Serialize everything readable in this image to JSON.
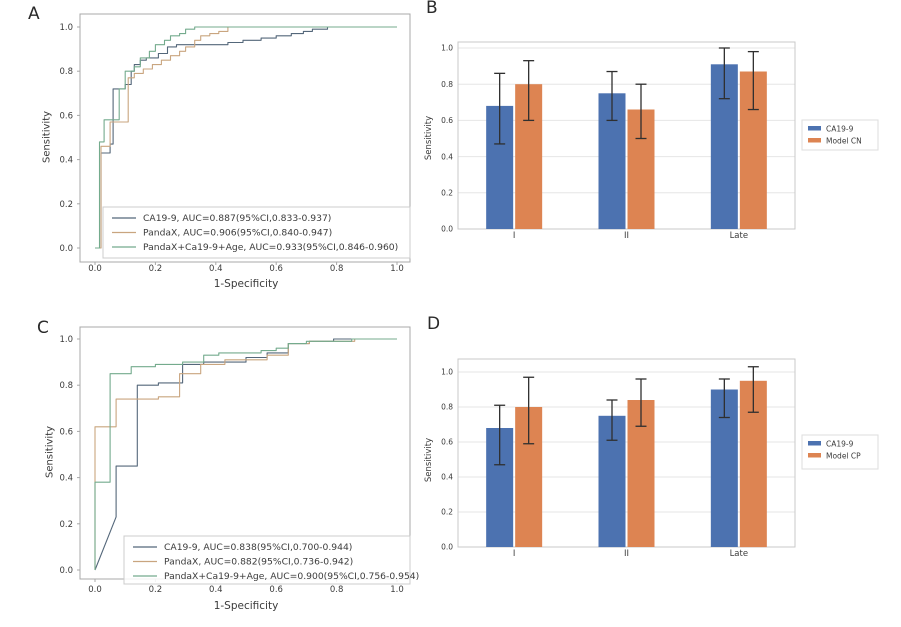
{
  "style": {
    "background": "#ffffff",
    "spine_roc": "#a8a8a8",
    "spine_bar": "#c9c9c9",
    "grid": "#e6e6e6",
    "error_bar": "#2f2f2f",
    "text": "#3b3b3b",
    "legend_border": "#cccccc"
  },
  "chart_data": [
    {
      "id": "A",
      "label": "A",
      "type": "line",
      "subtype": "roc-step",
      "xlabel": "1-Specificity",
      "ylabel": "Sensitivity",
      "xlim": [
        0.0,
        1.0
      ],
      "ylim": [
        0.0,
        1.0
      ],
      "xticks": [
        "0.0",
        "0.2",
        "0.4",
        "0.6",
        "0.8",
        "1.0"
      ],
      "yticks": [
        "0.0",
        "0.2",
        "0.4",
        "0.6",
        "0.8",
        "1.0"
      ],
      "grid": false,
      "legend_position": "lower right",
      "series": [
        {
          "name": "CA19-9",
          "auc": 0.887,
          "ci": "0.833-0.937",
          "legend": "CA19-9, AUC=0.887(95%CI,0.833-0.937)",
          "color": "#54677a",
          "points": [
            [
              0,
              0
            ],
            [
              0.02,
              0
            ],
            [
              0.02,
              0.43
            ],
            [
              0.05,
              0.43
            ],
            [
              0.05,
              0.47
            ],
            [
              0.06,
              0.47
            ],
            [
              0.06,
              0.72
            ],
            [
              0.1,
              0.72
            ],
            [
              0.1,
              0.74
            ],
            [
              0.12,
              0.74
            ],
            [
              0.12,
              0.8
            ],
            [
              0.13,
              0.8
            ],
            [
              0.13,
              0.83
            ],
            [
              0.15,
              0.83
            ],
            [
              0.15,
              0.85
            ],
            [
              0.17,
              0.85
            ],
            [
              0.17,
              0.86
            ],
            [
              0.21,
              0.86
            ],
            [
              0.21,
              0.88
            ],
            [
              0.24,
              0.88
            ],
            [
              0.24,
              0.91
            ],
            [
              0.27,
              0.91
            ],
            [
              0.27,
              0.92
            ],
            [
              0.44,
              0.92
            ],
            [
              0.44,
              0.93
            ],
            [
              0.49,
              0.93
            ],
            [
              0.49,
              0.94
            ],
            [
              0.55,
              0.94
            ],
            [
              0.55,
              0.95
            ],
            [
              0.6,
              0.95
            ],
            [
              0.6,
              0.96
            ],
            [
              0.65,
              0.96
            ],
            [
              0.65,
              0.97
            ],
            [
              0.69,
              0.97
            ],
            [
              0.69,
              0.98
            ],
            [
              0.72,
              0.98
            ],
            [
              0.72,
              0.99
            ],
            [
              0.77,
              0.99
            ],
            [
              0.77,
              1
            ],
            [
              1,
              1
            ]
          ]
        },
        {
          "name": "PandaX",
          "auc": 0.906,
          "ci": "0.840-0.947",
          "legend": "PandaX, AUC=0.906(95%CI,0.840-0.947)",
          "color": "#c9a57f",
          "points": [
            [
              0,
              0
            ],
            [
              0.02,
              0
            ],
            [
              0.02,
              0.46
            ],
            [
              0.05,
              0.46
            ],
            [
              0.05,
              0.57
            ],
            [
              0.11,
              0.57
            ],
            [
              0.11,
              0.77
            ],
            [
              0.13,
              0.77
            ],
            [
              0.13,
              0.79
            ],
            [
              0.16,
              0.79
            ],
            [
              0.16,
              0.81
            ],
            [
              0.19,
              0.81
            ],
            [
              0.19,
              0.83
            ],
            [
              0.22,
              0.83
            ],
            [
              0.22,
              0.85
            ],
            [
              0.25,
              0.85
            ],
            [
              0.25,
              0.87
            ],
            [
              0.28,
              0.87
            ],
            [
              0.28,
              0.89
            ],
            [
              0.3,
              0.89
            ],
            [
              0.3,
              0.91
            ],
            [
              0.33,
              0.91
            ],
            [
              0.33,
              0.94
            ],
            [
              0.35,
              0.94
            ],
            [
              0.35,
              0.96
            ],
            [
              0.38,
              0.96
            ],
            [
              0.38,
              0.97
            ],
            [
              0.41,
              0.97
            ],
            [
              0.41,
              0.98
            ],
            [
              0.44,
              0.98
            ],
            [
              0.44,
              1
            ],
            [
              1,
              1
            ]
          ]
        },
        {
          "name": "PandaX+Ca19-9+Age",
          "auc": 0.933,
          "ci": "0.846-0.960",
          "legend": "PandaX+Ca19-9+Age, AUC=0.933(95%CI,0.846-0.960)",
          "color": "#74ab8d",
          "points": [
            [
              0,
              0
            ],
            [
              0.015,
              0
            ],
            [
              0.015,
              0.48
            ],
            [
              0.03,
              0.48
            ],
            [
              0.03,
              0.58
            ],
            [
              0.08,
              0.58
            ],
            [
              0.08,
              0.72
            ],
            [
              0.1,
              0.72
            ],
            [
              0.1,
              0.8
            ],
            [
              0.13,
              0.8
            ],
            [
              0.13,
              0.82
            ],
            [
              0.15,
              0.82
            ],
            [
              0.15,
              0.86
            ],
            [
              0.18,
              0.86
            ],
            [
              0.18,
              0.89
            ],
            [
              0.2,
              0.89
            ],
            [
              0.2,
              0.92
            ],
            [
              0.23,
              0.92
            ],
            [
              0.23,
              0.94
            ],
            [
              0.25,
              0.94
            ],
            [
              0.25,
              0.96
            ],
            [
              0.28,
              0.96
            ],
            [
              0.28,
              0.97
            ],
            [
              0.3,
              0.97
            ],
            [
              0.3,
              0.99
            ],
            [
              0.33,
              0.99
            ],
            [
              0.33,
              1
            ],
            [
              1,
              1
            ]
          ]
        }
      ]
    },
    {
      "id": "B",
      "label": "B",
      "type": "bar",
      "ylabel": "Sensitivity",
      "categories": [
        "I",
        "II",
        "Late"
      ],
      "yticks": [
        "0.0",
        "0.2",
        "0.4",
        "0.6",
        "0.8",
        "1.0"
      ],
      "ylim": [
        0.0,
        1.03
      ],
      "grid": true,
      "legend_position": "center right",
      "series": [
        {
          "name": "CA19-9",
          "color": "#4c72b0",
          "values": [
            0.68,
            0.75,
            0.91
          ],
          "err_low": [
            0.47,
            0.6,
            0.72
          ],
          "err_high": [
            0.86,
            0.87,
            1.0
          ]
        },
        {
          "name": "Model CN",
          "color": "#dd8452",
          "values": [
            0.8,
            0.66,
            0.87
          ],
          "err_low": [
            0.6,
            0.5,
            0.66
          ],
          "err_high": [
            0.93,
            0.8,
            0.98
          ]
        }
      ]
    },
    {
      "id": "C",
      "label": "C",
      "type": "line",
      "subtype": "roc-step",
      "xlabel": "1-Specificity",
      "ylabel": "Sensitivity",
      "xlim": [
        0.0,
        1.0
      ],
      "ylim": [
        0.0,
        1.0
      ],
      "xticks": [
        "0.0",
        "0.2",
        "0.4",
        "0.6",
        "0.8",
        "1.0"
      ],
      "yticks": [
        "0.0",
        "0.2",
        "0.4",
        "0.6",
        "0.8",
        "1.0"
      ],
      "grid": false,
      "legend_position": "lower right",
      "series": [
        {
          "name": "CA19-9",
          "auc": 0.838,
          "ci": "0.700-0.944",
          "legend": "CA19-9, AUC=0.838(95%CI,0.700-0.944)",
          "color": "#54677a",
          "points": [
            [
              0,
              0
            ],
            [
              0.07,
              0.23
            ],
            [
              0.07,
              0.45
            ],
            [
              0.14,
              0.45
            ],
            [
              0.14,
              0.8
            ],
            [
              0.21,
              0.8
            ],
            [
              0.21,
              0.81
            ],
            [
              0.29,
              0.81
            ],
            [
              0.29,
              0.89
            ],
            [
              0.36,
              0.89
            ],
            [
              0.36,
              0.9
            ],
            [
              0.5,
              0.9
            ],
            [
              0.5,
              0.92
            ],
            [
              0.57,
              0.92
            ],
            [
              0.57,
              0.94
            ],
            [
              0.64,
              0.94
            ],
            [
              0.64,
              0.98
            ],
            [
              0.71,
              0.98
            ],
            [
              0.71,
              0.99
            ],
            [
              0.79,
              0.99
            ],
            [
              0.79,
              1
            ],
            [
              1,
              1
            ]
          ]
        },
        {
          "name": "PandaX",
          "auc": 0.882,
          "ci": "0.736-0.942",
          "legend": "PandaX, AUC=0.882(95%CI,0.736-0.942)",
          "color": "#c9a57f",
          "points": [
            [
              0,
              0
            ],
            [
              0,
              0.62
            ],
            [
              0.07,
              0.62
            ],
            [
              0.07,
              0.74
            ],
            [
              0.21,
              0.74
            ],
            [
              0.21,
              0.75
            ],
            [
              0.28,
              0.75
            ],
            [
              0.28,
              0.85
            ],
            [
              0.35,
              0.85
            ],
            [
              0.35,
              0.89
            ],
            [
              0.43,
              0.89
            ],
            [
              0.43,
              0.91
            ],
            [
              0.5,
              0.91
            ],
            [
              0.57,
              0.91
            ],
            [
              0.57,
              0.93
            ],
            [
              0.64,
              0.93
            ],
            [
              0.64,
              0.98
            ],
            [
              0.71,
              0.98
            ],
            [
              0.71,
              0.99
            ],
            [
              0.86,
              0.99
            ],
            [
              0.86,
              1
            ],
            [
              1,
              1
            ]
          ]
        },
        {
          "name": "PandaX+Ca19-9+Age",
          "auc": 0.9,
          "ci": "0.756-0.954",
          "legend": "PandaX+Ca19-9+Age, AUC=0.900(95%CI,0.756-0.954)",
          "color": "#74ab8d",
          "points": [
            [
              0,
              0
            ],
            [
              0,
              0.38
            ],
            [
              0.05,
              0.38
            ],
            [
              0.05,
              0.85
            ],
            [
              0.12,
              0.85
            ],
            [
              0.12,
              0.88
            ],
            [
              0.2,
              0.88
            ],
            [
              0.2,
              0.89
            ],
            [
              0.29,
              0.89
            ],
            [
              0.29,
              0.9
            ],
            [
              0.36,
              0.9
            ],
            [
              0.36,
              0.93
            ],
            [
              0.41,
              0.93
            ],
            [
              0.41,
              0.94
            ],
            [
              0.55,
              0.94
            ],
            [
              0.55,
              0.95
            ],
            [
              0.6,
              0.95
            ],
            [
              0.6,
              0.96
            ],
            [
              0.64,
              0.96
            ],
            [
              0.64,
              0.98
            ],
            [
              0.7,
              0.98
            ],
            [
              0.7,
              0.99
            ],
            [
              0.85,
              0.99
            ],
            [
              0.85,
              1
            ],
            [
              1,
              1
            ]
          ]
        }
      ]
    },
    {
      "id": "D",
      "label": "D",
      "type": "bar",
      "ylabel": "Sensitivity",
      "categories": [
        "I",
        "II",
        "Late"
      ],
      "yticks": [
        "0.0",
        "0.2",
        "0.4",
        "0.6",
        "0.8",
        "1.0"
      ],
      "ylim": [
        0.0,
        1.07
      ],
      "grid": true,
      "legend_position": "center right",
      "series": [
        {
          "name": "CA19-9",
          "color": "#4c72b0",
          "values": [
            0.68,
            0.75,
            0.9
          ],
          "err_low": [
            0.47,
            0.61,
            0.74
          ],
          "err_high": [
            0.81,
            0.84,
            0.96
          ]
        },
        {
          "name": "Model CP",
          "color": "#dd8452",
          "values": [
            0.8,
            0.84,
            0.95
          ],
          "err_low": [
            0.59,
            0.69,
            0.77
          ],
          "err_high": [
            0.97,
            0.96,
            1.03
          ]
        }
      ]
    }
  ]
}
